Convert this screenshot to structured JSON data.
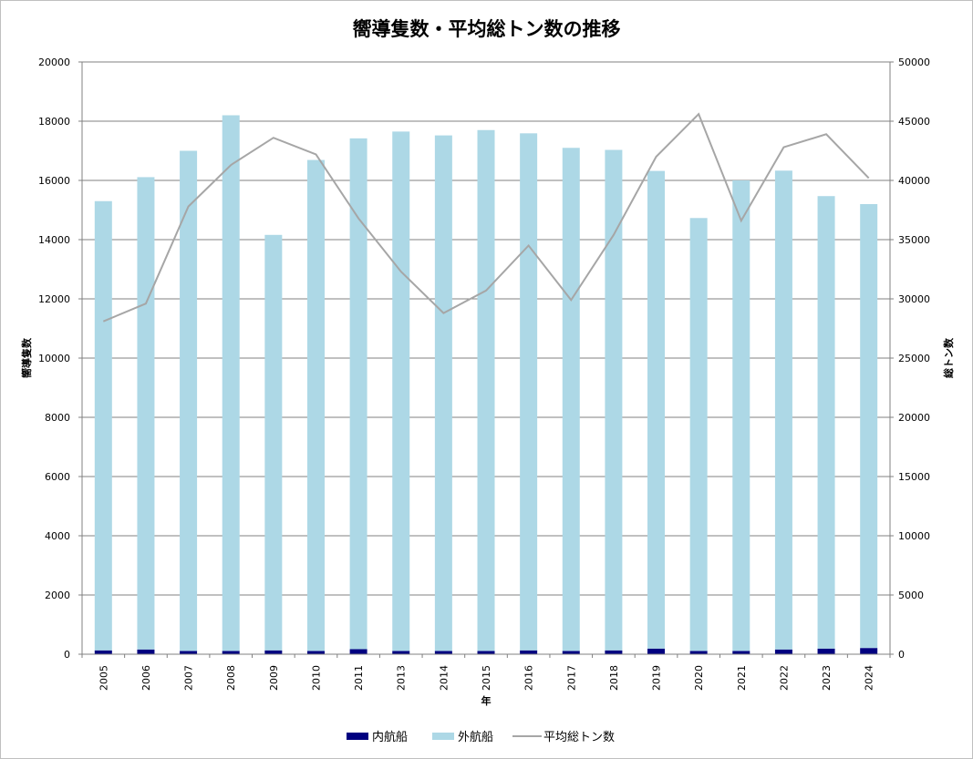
{
  "chart_data": {
    "type": "bar",
    "title": "嚮導隻数・平均総トン数の推移",
    "xlabel": "年",
    "ylabel": "嚮導隻数",
    "y2label": "総トン数",
    "ylim": [
      0,
      20000
    ],
    "y2lim": [
      0,
      50000
    ],
    "yticks": [
      0,
      2000,
      4000,
      6000,
      8000,
      10000,
      12000,
      14000,
      16000,
      18000,
      20000
    ],
    "y2ticks": [
      0,
      5000,
      10000,
      15000,
      20000,
      25000,
      30000,
      35000,
      40000,
      45000,
      50000
    ],
    "grid": true,
    "legend_position": "bottom",
    "categories": [
      "2005",
      "2006",
      "2007",
      "2008",
      "2009",
      "2010",
      "2011",
      "2013",
      "2014",
      "2015",
      "2016",
      "2017",
      "2018",
      "2019",
      "2020",
      "2021",
      "2022",
      "2023",
      "2024"
    ],
    "series": [
      {
        "name": "内航船",
        "type": "bar",
        "stack": "total",
        "axis": "left",
        "color": "#000080",
        "values": [
          130,
          160,
          110,
          110,
          130,
          110,
          170,
          110,
          110,
          110,
          130,
          110,
          130,
          190,
          110,
          110,
          160,
          190,
          210
        ]
      },
      {
        "name": "外航船",
        "type": "bar",
        "stack": "total",
        "axis": "left",
        "color": "#add8e6",
        "values": [
          15170,
          15950,
          16890,
          18090,
          14030,
          16580,
          17250,
          17540,
          17410,
          17590,
          17460,
          16990,
          16900,
          16130,
          14620,
          15890,
          16170,
          15280,
          14990
        ]
      },
      {
        "name": "平均総トン数",
        "type": "line",
        "axis": "right",
        "color": "#a6a6a6",
        "values": [
          28100,
          29600,
          37800,
          41300,
          43600,
          42200,
          36800,
          32300,
          28800,
          30700,
          34500,
          29900,
          35400,
          42000,
          45600,
          36600,
          42800,
          43900,
          40200
        ]
      }
    ]
  }
}
